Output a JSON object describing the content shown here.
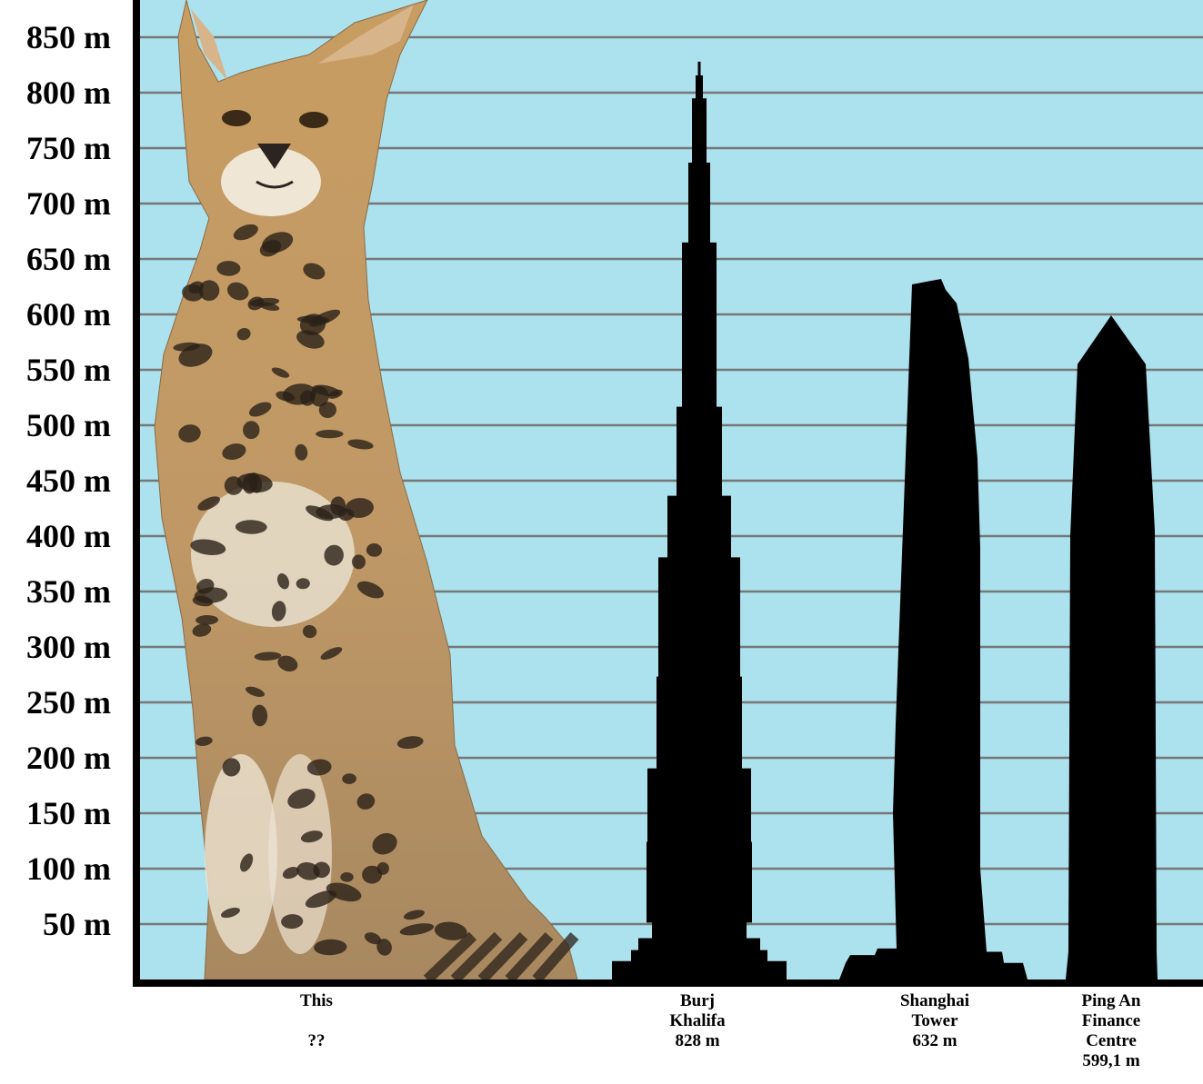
{
  "chart_data": {
    "type": "bar",
    "title": "",
    "xlabel": "",
    "ylabel": "",
    "ylim": [
      0,
      870
    ],
    "yticks": [
      50,
      100,
      150,
      200,
      250,
      300,
      350,
      400,
      450,
      500,
      550,
      600,
      650,
      700,
      750,
      800,
      850
    ],
    "ytick_unit": "m",
    "grid": true,
    "categories": [
      {
        "id": "cat",
        "lines": [
          "This",
          "",
          "??"
        ],
        "value": 870,
        "shape": "serval-photo"
      },
      {
        "id": "burj",
        "lines": [
          "Burj",
          "Khalifa",
          "828 m"
        ],
        "value": 828,
        "shape": "stepped-spire"
      },
      {
        "id": "shanghai",
        "lines": [
          "Shanghai",
          "Tower",
          "632 m"
        ],
        "value": 632,
        "shape": "tapered-tower"
      },
      {
        "id": "pingan",
        "lines": [
          "Ping An",
          "Finance",
          "Centre",
          "599,1 m"
        ],
        "value": 599.1,
        "shape": "pointed-tower"
      }
    ]
  },
  "colors": {
    "background": "#ace1ee",
    "gridline": "#777777",
    "axis": "#000000",
    "building": "#000000",
    "fur": "#c69a63",
    "spots": "#2a2118"
  }
}
